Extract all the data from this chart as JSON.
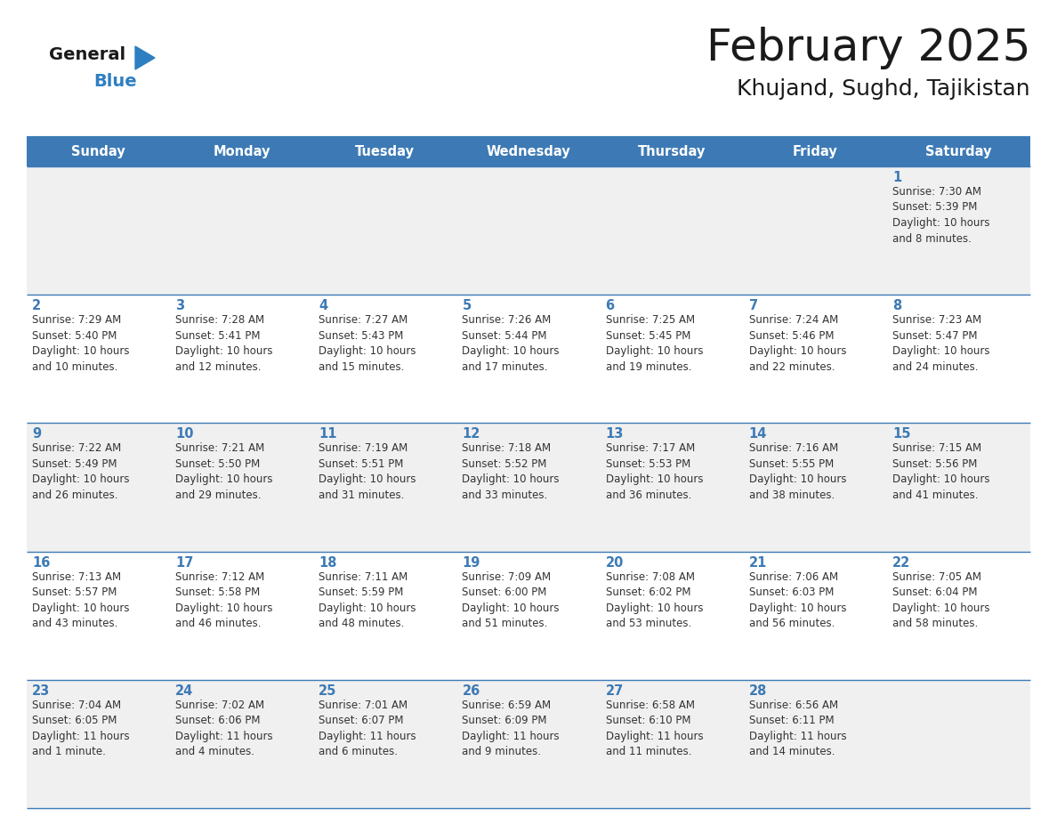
{
  "title": "February 2025",
  "subtitle": "Khujand, Sughd, Tajikistan",
  "days_of_week": [
    "Sunday",
    "Monday",
    "Tuesday",
    "Wednesday",
    "Thursday",
    "Friday",
    "Saturday"
  ],
  "header_bg": "#3d7ab5",
  "header_text": "#ffffff",
  "row_bg_even": "#f0f0f0",
  "row_bg_odd": "#ffffff",
  "border_color": "#3d7ab5",
  "day_num_color": "#3d7ab5",
  "cell_text_color": "#333333",
  "title_color": "#1a1a1a",
  "subtitle_color": "#1a1a1a",
  "logo_general_color": "#1a1a1a",
  "logo_blue_color": "#2e7fc1",
  "calendar_data": [
    [
      null,
      null,
      null,
      null,
      null,
      null,
      {
        "day": 1,
        "sunrise": "7:30 AM",
        "sunset": "5:39 PM",
        "daylight": "10 hours\nand 8 minutes."
      }
    ],
    [
      {
        "day": 2,
        "sunrise": "7:29 AM",
        "sunset": "5:40 PM",
        "daylight": "10 hours\nand 10 minutes."
      },
      {
        "day": 3,
        "sunrise": "7:28 AM",
        "sunset": "5:41 PM",
        "daylight": "10 hours\nand 12 minutes."
      },
      {
        "day": 4,
        "sunrise": "7:27 AM",
        "sunset": "5:43 PM",
        "daylight": "10 hours\nand 15 minutes."
      },
      {
        "day": 5,
        "sunrise": "7:26 AM",
        "sunset": "5:44 PM",
        "daylight": "10 hours\nand 17 minutes."
      },
      {
        "day": 6,
        "sunrise": "7:25 AM",
        "sunset": "5:45 PM",
        "daylight": "10 hours\nand 19 minutes."
      },
      {
        "day": 7,
        "sunrise": "7:24 AM",
        "sunset": "5:46 PM",
        "daylight": "10 hours\nand 22 minutes."
      },
      {
        "day": 8,
        "sunrise": "7:23 AM",
        "sunset": "5:47 PM",
        "daylight": "10 hours\nand 24 minutes."
      }
    ],
    [
      {
        "day": 9,
        "sunrise": "7:22 AM",
        "sunset": "5:49 PM",
        "daylight": "10 hours\nand 26 minutes."
      },
      {
        "day": 10,
        "sunrise": "7:21 AM",
        "sunset": "5:50 PM",
        "daylight": "10 hours\nand 29 minutes."
      },
      {
        "day": 11,
        "sunrise": "7:19 AM",
        "sunset": "5:51 PM",
        "daylight": "10 hours\nand 31 minutes."
      },
      {
        "day": 12,
        "sunrise": "7:18 AM",
        "sunset": "5:52 PM",
        "daylight": "10 hours\nand 33 minutes."
      },
      {
        "day": 13,
        "sunrise": "7:17 AM",
        "sunset": "5:53 PM",
        "daylight": "10 hours\nand 36 minutes."
      },
      {
        "day": 14,
        "sunrise": "7:16 AM",
        "sunset": "5:55 PM",
        "daylight": "10 hours\nand 38 minutes."
      },
      {
        "day": 15,
        "sunrise": "7:15 AM",
        "sunset": "5:56 PM",
        "daylight": "10 hours\nand 41 minutes."
      }
    ],
    [
      {
        "day": 16,
        "sunrise": "7:13 AM",
        "sunset": "5:57 PM",
        "daylight": "10 hours\nand 43 minutes."
      },
      {
        "day": 17,
        "sunrise": "7:12 AM",
        "sunset": "5:58 PM",
        "daylight": "10 hours\nand 46 minutes."
      },
      {
        "day": 18,
        "sunrise": "7:11 AM",
        "sunset": "5:59 PM",
        "daylight": "10 hours\nand 48 minutes."
      },
      {
        "day": 19,
        "sunrise": "7:09 AM",
        "sunset": "6:00 PM",
        "daylight": "10 hours\nand 51 minutes."
      },
      {
        "day": 20,
        "sunrise": "7:08 AM",
        "sunset": "6:02 PM",
        "daylight": "10 hours\nand 53 minutes."
      },
      {
        "day": 21,
        "sunrise": "7:06 AM",
        "sunset": "6:03 PM",
        "daylight": "10 hours\nand 56 minutes."
      },
      {
        "day": 22,
        "sunrise": "7:05 AM",
        "sunset": "6:04 PM",
        "daylight": "10 hours\nand 58 minutes."
      }
    ],
    [
      {
        "day": 23,
        "sunrise": "7:04 AM",
        "sunset": "6:05 PM",
        "daylight": "11 hours\nand 1 minute."
      },
      {
        "day": 24,
        "sunrise": "7:02 AM",
        "sunset": "6:06 PM",
        "daylight": "11 hours\nand 4 minutes."
      },
      {
        "day": 25,
        "sunrise": "7:01 AM",
        "sunset": "6:07 PM",
        "daylight": "11 hours\nand 6 minutes."
      },
      {
        "day": 26,
        "sunrise": "6:59 AM",
        "sunset": "6:09 PM",
        "daylight": "11 hours\nand 9 minutes."
      },
      {
        "day": 27,
        "sunrise": "6:58 AM",
        "sunset": "6:10 PM",
        "daylight": "11 hours\nand 11 minutes."
      },
      {
        "day": 28,
        "sunrise": "6:56 AM",
        "sunset": "6:11 PM",
        "daylight": "11 hours\nand 14 minutes."
      },
      null
    ]
  ]
}
